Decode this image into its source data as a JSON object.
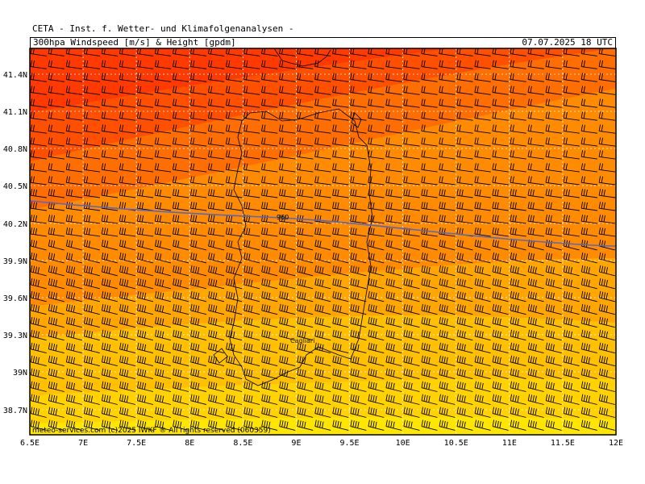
{
  "header": {
    "title": "CETA - Inst. f. Wetter- und Klimafolgenanalysen -",
    "subtitle": "300hpa Windspeed [m/s] & Height [gpdm]",
    "valid_time": "07.07.2025 18 UTC"
  },
  "axes": {
    "lat_labels": [
      "41.4N",
      "41.1N",
      "40.8N",
      "40.5N",
      "40.2N",
      "39.9N",
      "39.6N",
      "39.3N",
      "39N",
      "38.7N"
    ],
    "lon_labels": [
      "6.5E",
      "7E",
      "7.5E",
      "8E",
      "8.5E",
      "9E",
      "9.5E",
      "10E",
      "10.5E",
      "11E",
      "11.5E",
      "12E"
    ]
  },
  "contour": {
    "label": "960",
    "color": "#5566cc"
  },
  "place_label": "Cagliari",
  "footer": "meteo-services.com  (c)2025 IWKF ® All rights reserved (060359)",
  "colors": {
    "speed_top": "#ff3a00",
    "speed_mid": "#ff8c00",
    "speed_low": "#ffc000",
    "speed_bottom": "#ffe600",
    "grid": "#ffffff",
    "barb": "#000000"
  }
}
